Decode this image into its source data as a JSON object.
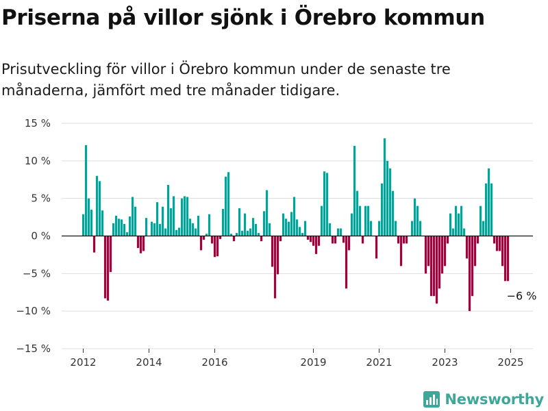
{
  "title": "Priserna på villor sjönk i Örebro kommun",
  "subtitle": "Prisutveckling för villor i Örebro kommun under de senaste tre månaderna, jämfört med tre månader tidigare.",
  "brand": {
    "name": "Newsworthy",
    "icon": "bar-chart-logo-icon"
  },
  "colors": {
    "positive": "#00a59a",
    "negative": "#a3003e",
    "grid": "#dddddd",
    "brand": "#3fa79a"
  },
  "chart_data": {
    "type": "bar",
    "ylim": [
      -15,
      15
    ],
    "yticks": [
      {
        "value": 15,
        "label": "15 %"
      },
      {
        "value": 10,
        "label": "10 %"
      },
      {
        "value": 5,
        "label": "5 %"
      },
      {
        "value": 0,
        "label": "0 %"
      },
      {
        "value": -5,
        "label": "−5 %"
      },
      {
        "value": -10,
        "label": "−10 %"
      },
      {
        "value": -15,
        "label": "−15 %"
      }
    ],
    "xticks": [
      {
        "x": "2012-01",
        "label": "2012"
      },
      {
        "x": "2014-01",
        "label": "2014"
      },
      {
        "x": "2016-01",
        "label": "2016"
      },
      {
        "x": "2019-01",
        "label": "2019"
      },
      {
        "x": "2021-01",
        "label": "2021"
      },
      {
        "x": "2023-01",
        "label": "2023"
      },
      {
        "x": "2025-01",
        "label": "2025"
      }
    ],
    "x_start": "2012-01",
    "values": [
      2.9,
      12.1,
      5.0,
      3.5,
      -2.2,
      8.0,
      7.3,
      3.4,
      -8.3,
      -8.6,
      -4.8,
      1.7,
      2.7,
      2.3,
      2.2,
      1.6,
      0.5,
      2.6,
      5.2,
      3.9,
      -1.6,
      -2.3,
      -2.0,
      2.4,
      0.0,
      1.9,
      1.7,
      4.5,
      1.6,
      3.9,
      1.0,
      6.8,
      3.7,
      5.3,
      0.8,
      1.1,
      5.0,
      5.3,
      5.2,
      2.3,
      1.7,
      1.0,
      2.7,
      -1.9,
      -0.5,
      0.3,
      2.9,
      -1.0,
      -2.8,
      -2.7,
      -0.4,
      3.6,
      7.9,
      8.5,
      0.3,
      -0.7,
      0.4,
      3.7,
      0.7,
      3.0,
      0.7,
      1.0,
      2.4,
      1.6,
      0.4,
      -0.7,
      3.3,
      6.1,
      1.7,
      -4.1,
      -8.3,
      -5.1,
      -0.7,
      3.0,
      2.3,
      1.9,
      3.2,
      5.2,
      2.2,
      1.2,
      0.4,
      2.0,
      -0.5,
      -0.8,
      -1.3,
      -2.4,
      -1.3,
      4.0,
      8.6,
      8.4,
      1.7,
      -1.0,
      -1.0,
      1.0,
      1.0,
      -0.9,
      -7.0,
      -1.9,
      3.0,
      12.0,
      6.0,
      4.0,
      -1.0,
      4.0,
      4.0,
      2.0,
      0.0,
      -3.0,
      2.0,
      7.0,
      13.0,
      10.0,
      9.0,
      6.0,
      2.0,
      -1.0,
      -4.0,
      -1.0,
      -1.0,
      0.0,
      2.0,
      5.0,
      4.0,
      2.0,
      0.0,
      -5.0,
      -4.0,
      -8.0,
      -8.0,
      -9.0,
      -7.0,
      -5.0,
      -4.0,
      -1.0,
      3.0,
      1.0,
      4.0,
      3.0,
      4.0,
      1.0,
      -3.0,
      -10.0,
      -8.0,
      -4.0,
      -1.0,
      4.0,
      2.0,
      7.0,
      9.0,
      7.0,
      -1.0,
      -2.0,
      -2.0,
      -4.0,
      -6.0,
      -6.0
    ],
    "annotation": {
      "label": "−6 %"
    }
  }
}
